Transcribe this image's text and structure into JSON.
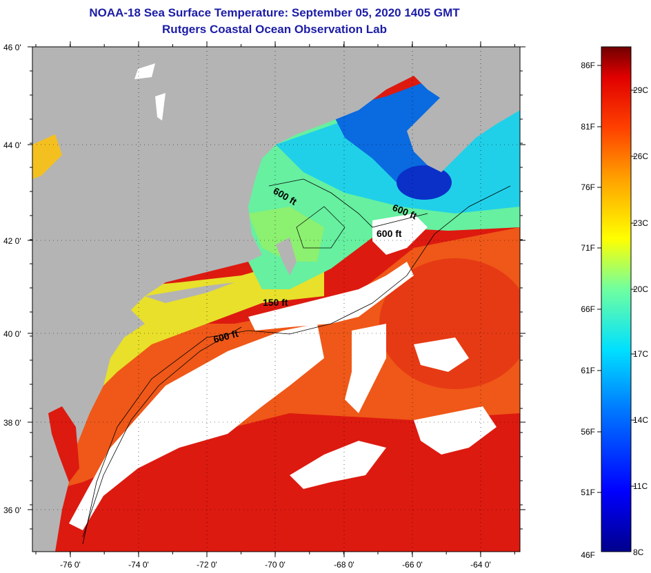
{
  "header": {
    "title": "NOAA-18 Sea Surface Temperature:  September 05, 2020 1405 GMT",
    "subtitle": "Rutgers Coastal Ocean Observation Lab"
  },
  "map": {
    "lat_labels": [
      "46 0'",
      "44 0'",
      "42 0'",
      "40 0'",
      "38 0'",
      "36 0'"
    ],
    "lon_labels": [
      "-76 0'",
      "-74 0'",
      "-72 0'",
      "-70 0'",
      "-68 0'",
      "-66 0'",
      "-64 0'"
    ],
    "lat_range": [
      35,
      46
    ],
    "lon_range": [
      -77,
      -63
    ],
    "contour_labels": [
      "600 ft",
      "600 ft",
      "600 ft",
      "150 ft",
      "600 ft"
    ],
    "colors": {
      "land": "#b4b4b4",
      "cloud": "#ffffff",
      "border": "#000000"
    }
  },
  "colorbar": {
    "fahrenheit": [
      "86F",
      "81F",
      "76F",
      "71F",
      "66F",
      "61F",
      "56F",
      "51F",
      "46F"
    ],
    "celsius": [
      "29C",
      "26C",
      "23C",
      "20C",
      "17C",
      "14C",
      "11C",
      "8C"
    ],
    "range_f": [
      46,
      88
    ],
    "range_c": [
      8,
      31
    ]
  }
}
